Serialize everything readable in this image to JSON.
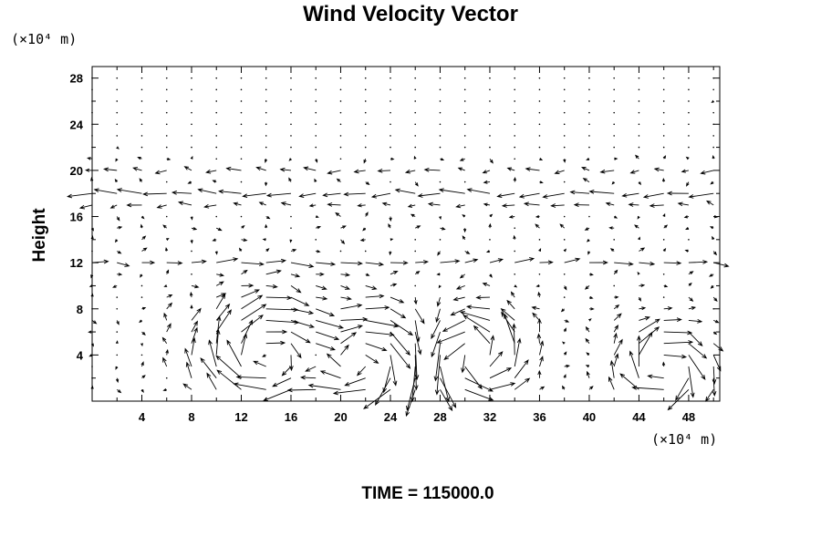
{
  "chart_data": {
    "type": "vector_field",
    "title": "Wind Velocity Vector",
    "ylabel": "Height",
    "x_unit": "(×10⁴ m)",
    "y_unit": "(×10⁴ m)",
    "xlim": [
      0,
      50.5
    ],
    "ylim": [
      0,
      29
    ],
    "x_ticks": [
      4,
      8,
      12,
      16,
      20,
      24,
      28,
      32,
      36,
      40,
      44,
      48
    ],
    "y_ticks": [
      4,
      8,
      12,
      16,
      20,
      24,
      28
    ],
    "grid": false,
    "annotation": "TIME = 115000.0",
    "vector_grid": {
      "x_start": 0,
      "x_step": 2,
      "x_count": 26,
      "y_start": 0,
      "y_step": 1,
      "y_count": 29
    },
    "jets": [
      {
        "y": 20,
        "direction": "westward",
        "strength": 0.4
      },
      {
        "y": 18,
        "direction": "westward",
        "strength": 0.75
      },
      {
        "y": 17,
        "direction": "westward",
        "strength": 0.35
      },
      {
        "y": 12,
        "direction": "eastward",
        "strength": 0.55
      }
    ],
    "eddies": [
      {
        "center_x": 14,
        "center_y": 4,
        "radius": 4.5,
        "rotation": "clockwise"
      },
      {
        "center_x": 22,
        "center_y": 3.5,
        "radius": 4,
        "rotation": "clockwise"
      },
      {
        "center_x": 31,
        "center_y": 4,
        "radius": 3.5,
        "rotation": "counterclockwise"
      },
      {
        "center_x": 46,
        "center_y": 3,
        "radius": 3,
        "rotation": "clockwise"
      }
    ]
  }
}
